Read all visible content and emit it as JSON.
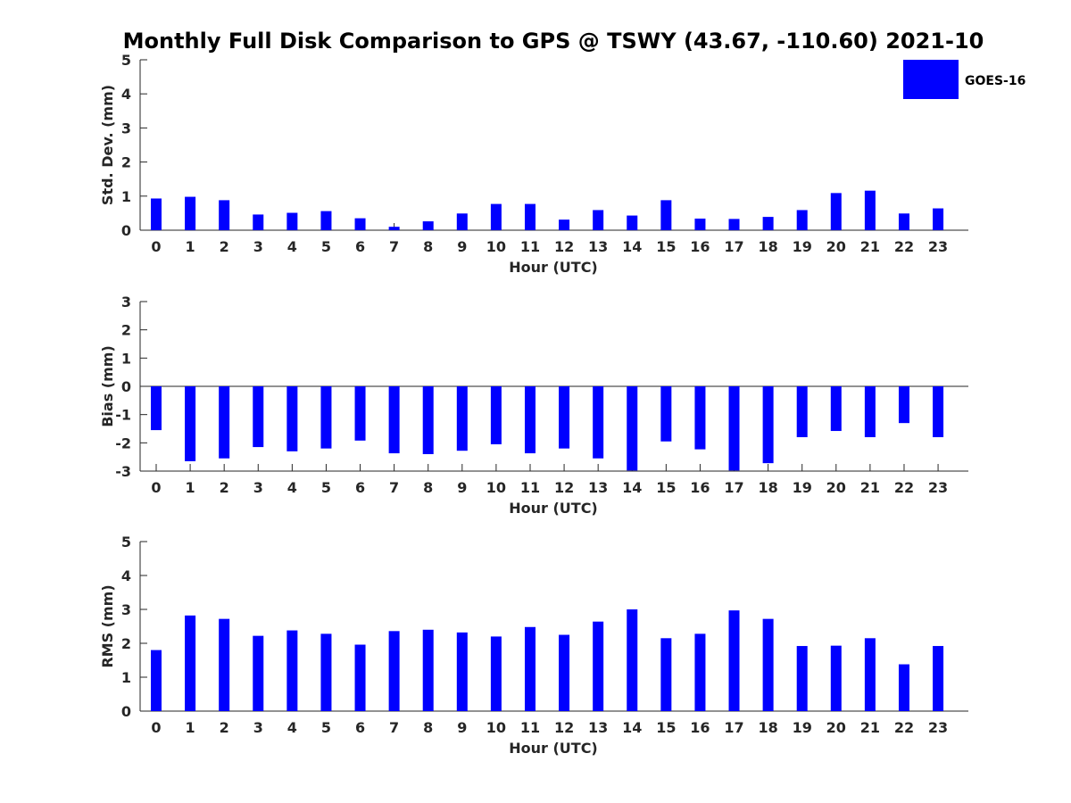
{
  "figure": {
    "title": "Monthly Full Disk Comparison to GPS @ TSWY (43.67, -110.60) 2021-10"
  },
  "legend": {
    "label": "GOES-16",
    "color": "#0000ff",
    "placement": "top-right"
  },
  "chart_data": [
    {
      "type": "bar",
      "xlabel": "Hour (UTC)",
      "ylabel": "Std. Dev. (mm)",
      "ylim": [
        0,
        5
      ],
      "yticks": [
        "0",
        "1",
        "2",
        "3",
        "4",
        "5"
      ],
      "categories": [
        "0",
        "1",
        "2",
        "3",
        "4",
        "5",
        "6",
        "7",
        "8",
        "9",
        "10",
        "11",
        "12",
        "13",
        "14",
        "15",
        "16",
        "17",
        "18",
        "19",
        "20",
        "21",
        "22",
        "23"
      ],
      "series": [
        {
          "name": "GOES-16",
          "color": "#0000ff",
          "values": [
            0.93,
            0.98,
            0.88,
            0.46,
            0.51,
            0.56,
            0.35,
            0.1,
            0.26,
            0.49,
            0.77,
            0.77,
            0.31,
            0.59,
            0.43,
            0.88,
            0.34,
            0.33,
            0.39,
            0.59,
            1.09,
            1.16,
            0.49,
            0.64
          ]
        }
      ]
    },
    {
      "type": "bar",
      "xlabel": "Hour (UTC)",
      "ylabel": "Bias (mm)",
      "ylim": [
        -3,
        3
      ],
      "yticks": [
        "-3",
        "-2",
        "-1",
        "0",
        "1",
        "2",
        "3"
      ],
      "categories": [
        "0",
        "1",
        "2",
        "3",
        "4",
        "5",
        "6",
        "7",
        "8",
        "9",
        "10",
        "11",
        "12",
        "13",
        "14",
        "15",
        "16",
        "17",
        "18",
        "19",
        "20",
        "21",
        "22",
        "23"
      ],
      "series": [
        {
          "name": "GOES-16",
          "color": "#0000ff",
          "values": [
            -1.55,
            -2.65,
            -2.55,
            -2.15,
            -2.3,
            -2.2,
            -1.92,
            -2.37,
            -2.4,
            -2.28,
            -2.05,
            -2.37,
            -2.2,
            -2.55,
            -2.98,
            -1.95,
            -2.23,
            -2.98,
            -2.72,
            -1.8,
            -1.58,
            -1.8,
            -1.3,
            -1.8
          ]
        }
      ]
    },
    {
      "type": "bar",
      "xlabel": "Hour (UTC)",
      "ylabel": "RMS (mm)",
      "ylim": [
        0,
        5
      ],
      "yticks": [
        "0",
        "1",
        "2",
        "3",
        "4",
        "5"
      ],
      "categories": [
        "0",
        "1",
        "2",
        "3",
        "4",
        "5",
        "6",
        "7",
        "8",
        "9",
        "10",
        "11",
        "12",
        "13",
        "14",
        "15",
        "16",
        "17",
        "18",
        "19",
        "20",
        "21",
        "22",
        "23"
      ],
      "series": [
        {
          "name": "GOES-16",
          "color": "#0000ff",
          "values": [
            1.8,
            2.82,
            2.72,
            2.22,
            2.38,
            2.28,
            1.96,
            2.36,
            2.4,
            2.32,
            2.2,
            2.48,
            2.25,
            2.64,
            3.0,
            2.15,
            2.28,
            2.97,
            2.72,
            1.92,
            1.93,
            2.15,
            1.38,
            1.92
          ]
        }
      ]
    }
  ]
}
